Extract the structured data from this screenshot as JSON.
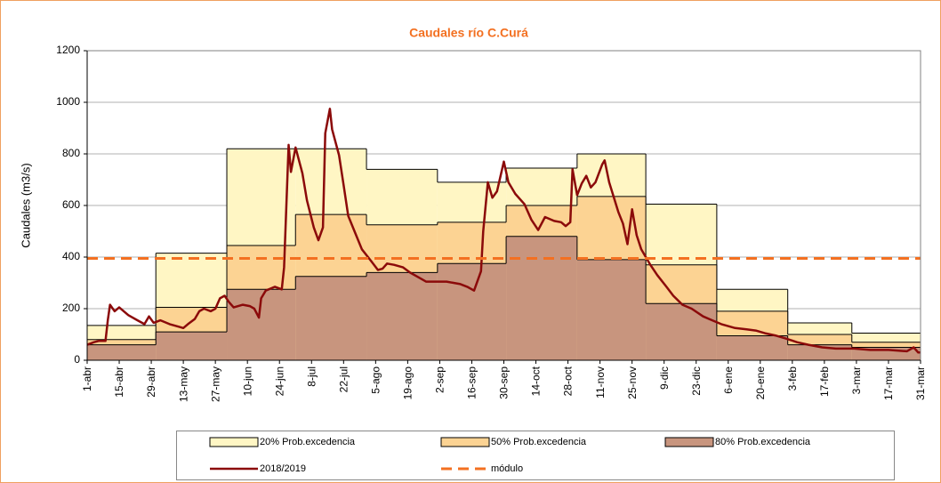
{
  "chart_data": {
    "type": "area",
    "title": "Caudales río C.Curá",
    "y_label": "Caudales (m3/s)",
    "xlim": [
      0,
      364
    ],
    "xticks": [
      {
        "value": 0,
        "label": "1-abr"
      },
      {
        "value": 14,
        "label": "15-abr"
      },
      {
        "value": 28,
        "label": "29-abr"
      },
      {
        "value": 42,
        "label": "13-may"
      },
      {
        "value": 56,
        "label": "27-may"
      },
      {
        "value": 70,
        "label": "10-jun"
      },
      {
        "value": 84,
        "label": "24-jun"
      },
      {
        "value": 98,
        "label": "8-jul"
      },
      {
        "value": 112,
        "label": "22-jul"
      },
      {
        "value": 126,
        "label": "5-ago"
      },
      {
        "value": 140,
        "label": "19-ago"
      },
      {
        "value": 154,
        "label": "2-sep"
      },
      {
        "value": 168,
        "label": "16-sep"
      },
      {
        "value": 182,
        "label": "30-sep"
      },
      {
        "value": 196,
        "label": "14-oct"
      },
      {
        "value": 210,
        "label": "28-oct"
      },
      {
        "value": 224,
        "label": "11-nov"
      },
      {
        "value": 238,
        "label": "25-nov"
      },
      {
        "value": 252,
        "label": "9-dic"
      },
      {
        "value": 266,
        "label": "23-dic"
      },
      {
        "value": 280,
        "label": "6-ene"
      },
      {
        "value": 294,
        "label": "20-ene"
      },
      {
        "value": 308,
        "label": "3-feb"
      },
      {
        "value": 322,
        "label": "17-feb"
      },
      {
        "value": 336,
        "label": "3-mar"
      },
      {
        "value": 350,
        "label": "17-mar"
      },
      {
        "value": 364,
        "label": "31-mar"
      }
    ],
    "ylim": [
      0,
      1200
    ],
    "yticks": [
      0,
      200,
      400,
      600,
      800,
      1000,
      1200
    ],
    "grid": true,
    "legend": "bottom",
    "step_edges": [
      0,
      30,
      61,
      91,
      122,
      153,
      183,
      214,
      244,
      275,
      306,
      334,
      364
    ],
    "series": [
      {
        "name": "20% Prob.excedencia",
        "type": "step",
        "color": "#fff6c4",
        "values": [
          135,
          415,
          820,
          820,
          740,
          690,
          745,
          800,
          605,
          275,
          145,
          105
        ]
      },
      {
        "name": "50% Prob.excedencia",
        "type": "step",
        "color": "#fcd393",
        "values": [
          80,
          205,
          445,
          565,
          525,
          535,
          600,
          635,
          370,
          190,
          100,
          70
        ]
      },
      {
        "name": "80% Prob.excedencia",
        "type": "step",
        "color": "#c8957e",
        "values": [
          60,
          110,
          275,
          325,
          340,
          375,
          480,
          390,
          220,
          95,
          60,
          50
        ]
      },
      {
        "name": "2018/2019",
        "type": "line",
        "color": "#8b0a0a",
        "x": [
          0,
          3,
          5,
          8,
          9,
          10,
          12,
          14,
          18,
          22,
          25,
          27,
          29,
          32,
          36,
          40,
          42,
          44,
          47,
          49,
          51,
          54,
          56,
          58,
          60,
          62,
          64,
          68,
          71,
          73,
          75,
          76,
          78,
          82,
          85,
          86,
          88,
          89,
          91,
          94,
          96,
          99,
          101,
          103,
          104,
          106,
          107,
          110,
          112,
          114,
          117,
          120,
          124,
          127,
          129,
          131,
          134,
          138,
          141,
          145,
          148,
          151,
          154,
          157,
          160,
          163,
          166,
          169,
          172,
          173,
          175,
          177,
          179,
          182,
          184,
          187,
          191,
          194,
          197,
          200,
          204,
          207,
          209,
          211,
          212,
          214,
          216,
          218,
          220,
          222,
          225,
          226,
          228,
          232,
          234,
          236,
          238,
          240,
          242,
          246,
          249,
          253,
          256,
          260,
          264,
          269,
          273,
          277,
          283,
          288,
          292,
          296,
          301,
          305,
          310,
          315,
          321,
          327,
          335,
          342,
          350,
          358,
          361,
          363,
          364
        ],
        "values": [
          60,
          70,
          75,
          75,
          155,
          215,
          190,
          205,
          175,
          155,
          140,
          170,
          145,
          155,
          140,
          130,
          125,
          140,
          160,
          190,
          200,
          190,
          200,
          240,
          250,
          225,
          205,
          215,
          210,
          200,
          165,
          240,
          270,
          285,
          275,
          360,
          835,
          730,
          825,
          725,
          620,
          515,
          465,
          515,
          880,
          975,
          895,
          795,
          680,
          560,
          495,
          430,
          385,
          350,
          355,
          375,
          370,
          360,
          340,
          320,
          305,
          305,
          305,
          305,
          300,
          295,
          285,
          270,
          345,
          500,
          690,
          630,
          655,
          770,
          690,
          645,
          605,
          545,
          505,
          555,
          540,
          535,
          520,
          535,
          740,
          640,
          685,
          715,
          670,
          690,
          760,
          775,
          690,
          575,
          530,
          450,
          585,
          485,
          430,
          370,
          330,
          285,
          250,
          215,
          200,
          170,
          155,
          140,
          125,
          120,
          115,
          105,
          95,
          85,
          70,
          60,
          50,
          45,
          45,
          40,
          40,
          35,
          50,
          30,
          30
        ]
      },
      {
        "name": "módulo",
        "type": "hline",
        "color": "#f37021",
        "dashed": true,
        "value": 395
      }
    ]
  }
}
